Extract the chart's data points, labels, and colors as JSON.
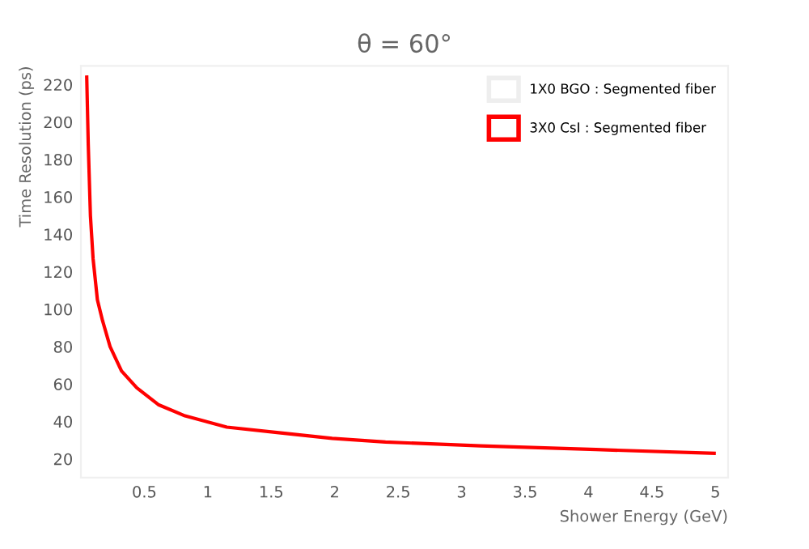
{
  "chart_data": {
    "type": "line",
    "title": "θ = 60°",
    "xlabel": "Shower Energy (GeV)",
    "ylabel": "Time Resolution (ps)",
    "x": [
      0.046,
      0.058,
      0.075,
      0.096,
      0.13,
      0.17,
      0.23,
      0.32,
      0.44,
      0.61,
      0.82,
      1.15,
      1.56,
      1.98,
      2.4,
      3.15,
      4.06,
      4.99
    ],
    "series": [
      {
        "name": "1X0 BGO : Segmented fiber",
        "color": "#eeeeee",
        "values": [
          null,
          null,
          null,
          null,
          null,
          null,
          null,
          null,
          null,
          null,
          null,
          null,
          null,
          null,
          null,
          null,
          null,
          null
        ]
      },
      {
        "name": "3X0 CsI : Segmented fiber",
        "color": "#ff0000",
        "values": [
          224,
          188,
          150,
          127,
          105,
          94,
          80,
          67,
          58,
          49,
          43,
          37,
          34,
          31,
          29,
          27,
          25,
          23
        ]
      }
    ],
    "xlim": [
      0,
      5.1
    ],
    "ylim": [
      10,
      230
    ],
    "xticks": [
      0.5,
      1,
      1.5,
      2,
      2.5,
      3,
      3.5,
      4,
      4.5,
      5
    ],
    "yticks": [
      20,
      40,
      60,
      80,
      100,
      120,
      140,
      160,
      180,
      200,
      220
    ],
    "legend": "top right",
    "grid": false
  }
}
